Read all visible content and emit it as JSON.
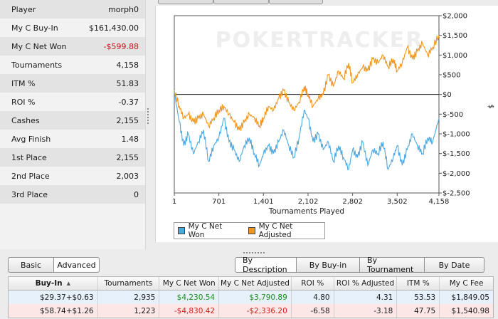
{
  "stats": [
    {
      "label": "Player",
      "value": "morph0"
    },
    {
      "label": "My C Buy-In",
      "value": "$161,430.00"
    },
    {
      "label": "My C Net Won",
      "value": "-$599.88",
      "negative": true
    },
    {
      "label": "Tournaments",
      "value": "4,158"
    },
    {
      "label": "ITM %",
      "value": "51.83"
    },
    {
      "label": "ROI %",
      "value": "-0.37"
    },
    {
      "label": "Cashes",
      "value": "2,155"
    },
    {
      "label": "Avg Finish",
      "value": "1.48"
    },
    {
      "label": "1st Place",
      "value": "2,155"
    },
    {
      "label": "2nd Place",
      "value": "2,003"
    },
    {
      "label": "3rd Place",
      "value": "0"
    }
  ],
  "chart": {
    "watermark": "POKERTRACKER",
    "y_axis_title": "$",
    "legend": [
      "My C Net Won",
      "My C Net Adjusted"
    ]
  },
  "chart_data": {
    "type": "line",
    "xlabel": "Tournaments Played",
    "ylabel": "$",
    "x_ticks": [
      1,
      701,
      1401,
      2102,
      2802,
      3502,
      4158
    ],
    "x_tick_labels": [
      "1",
      "701",
      "1,401",
      "2,102",
      "2,802",
      "3,502",
      "4,158"
    ],
    "xlim": [
      1,
      4158
    ],
    "ylim": [
      -2500,
      2000
    ],
    "y_ticks": [
      2000,
      1500,
      1000,
      500,
      0,
      -500,
      -1000,
      -1500,
      -2000,
      -2500
    ],
    "y_tick_labels": [
      "$2,000",
      "$1,500",
      "$1,000",
      "$500",
      "$0",
      "$-500",
      "$-1,000",
      "$-1,500",
      "$-2,000",
      "$-2,500"
    ],
    "grid": false,
    "legend_position": "bottom-left",
    "series": [
      {
        "name": "My C Net Won",
        "color": "#4aa8e0",
        "x": [
          1,
          80,
          150,
          220,
          300,
          380,
          460,
          540,
          620,
          701,
          780,
          860,
          940,
          1020,
          1100,
          1180,
          1260,
          1340,
          1401,
          1480,
          1560,
          1640,
          1720,
          1800,
          1880,
          1960,
          2040,
          2102,
          2180,
          2260,
          2340,
          2420,
          2500,
          2580,
          2660,
          2740,
          2802,
          2880,
          2960,
          3040,
          3120,
          3200,
          3280,
          3360,
          3440,
          3502,
          3580,
          3660,
          3740,
          3820,
          3900,
          3980,
          4060,
          4158
        ],
        "y": [
          50,
          -700,
          -1300,
          -1000,
          -1500,
          -1200,
          -900,
          -1700,
          -1300,
          -1100,
          -600,
          -1200,
          -1400,
          -1700,
          -1300,
          -1100,
          -1500,
          -1800,
          -1500,
          -1300,
          -1500,
          -1200,
          -900,
          -1300,
          -1600,
          -1100,
          -400,
          -600,
          -1200,
          -1000,
          -1400,
          -1200,
          -1700,
          -1300,
          -1600,
          -1900,
          -1400,
          -1600,
          -1200,
          -1800,
          -1400,
          -1500,
          -1200,
          -1900,
          -1600,
          -1300,
          -1800,
          -1400,
          -1000,
          -1300,
          -1500,
          -1100,
          -1200,
          -600
        ]
      },
      {
        "name": "My C Net Adjusted",
        "color": "#f0961e",
        "x": [
          1,
          80,
          150,
          220,
          300,
          380,
          460,
          540,
          620,
          701,
          780,
          860,
          940,
          1020,
          1100,
          1180,
          1260,
          1340,
          1401,
          1480,
          1560,
          1640,
          1720,
          1800,
          1880,
          1960,
          2040,
          2102,
          2180,
          2260,
          2340,
          2420,
          2500,
          2580,
          2660,
          2740,
          2802,
          2880,
          2960,
          3040,
          3120,
          3200,
          3280,
          3360,
          3440,
          3502,
          3580,
          3660,
          3740,
          3820,
          3900,
          3980,
          4060,
          4158
        ],
        "y": [
          100,
          -300,
          -600,
          -500,
          -700,
          -600,
          -500,
          -800,
          -600,
          -400,
          -300,
          -500,
          -700,
          -900,
          -700,
          -500,
          -600,
          -800,
          -600,
          -300,
          -400,
          -100,
          100,
          -200,
          -400,
          -200,
          200,
          0,
          -300,
          -100,
          0,
          500,
          200,
          600,
          400,
          800,
          300,
          500,
          700,
          600,
          900,
          800,
          1000,
          700,
          900,
          600,
          800,
          1200,
          900,
          1100,
          1300,
          1000,
          1200,
          1500
        ]
      }
    ]
  },
  "mode_tabs": [
    "Basic",
    "Advanced"
  ],
  "view_tabs": [
    "By Description",
    "By Buy-in",
    "By Tournament",
    "By Date"
  ],
  "table": {
    "headers": [
      "Buy-In",
      "Tournaments",
      "My C Net Won",
      "My C Net Adjusted",
      "ROI %",
      "ROI % Adjusted",
      "ITM %",
      "My C Fee"
    ],
    "rows": [
      [
        "$29.37+$0.63",
        "2,935",
        "$4,230.54",
        "$3,790.89",
        "4.80",
        "4.31",
        "53.53",
        "$1,849.05"
      ],
      [
        "$58.74+$1.26",
        "1,223",
        "-$4,830.42",
        "-$2,336.20",
        "-6.58",
        "-3.18",
        "47.75",
        "$1,540.98"
      ]
    ]
  }
}
